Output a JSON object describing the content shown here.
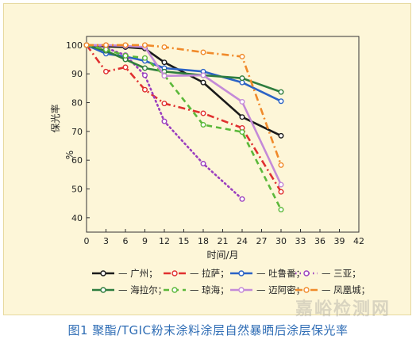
{
  "caption": "图1 聚酯/TGIC粉末涂料涂层自然暴晒后涂层保光率",
  "watermark": "嘉峪检测网",
  "chart_data": {
    "type": "line",
    "title": "",
    "xlabel": "时间/月",
    "ylabel": "保光率",
    "ylabel_unit": "%",
    "xlim": [
      0,
      42
    ],
    "ylim": [
      35,
      103
    ],
    "xticks": [
      0,
      3,
      6,
      9,
      12,
      15,
      18,
      21,
      24,
      27,
      30,
      33,
      36,
      39,
      42
    ],
    "yticks": [
      40,
      50,
      60,
      70,
      80,
      90,
      100
    ],
    "legend_placement": "bottom",
    "series": [
      {
        "name": "广州",
        "color": "#1a1a1a",
        "dash": "solid",
        "x": [
          0,
          3,
          6,
          9,
          12,
          18,
          24,
          30
        ],
        "y": [
          100,
          99.5,
          99.3,
          98.8,
          94,
          87,
          75,
          68.5
        ]
      },
      {
        "name": "拉萨",
        "color": "#e03030",
        "dash": "dashdot",
        "x": [
          0,
          3,
          6,
          9,
          12,
          18,
          24,
          30
        ],
        "y": [
          100,
          90.8,
          92.3,
          84.5,
          79.7,
          76.3,
          71.2,
          49
        ]
      },
      {
        "name": "吐鲁番",
        "color": "#2b63c6",
        "dash": "solid",
        "x": [
          0,
          3,
          6,
          9,
          12,
          18,
          24,
          30
        ],
        "y": [
          100,
          97,
          96,
          94.5,
          92,
          90.8,
          87,
          80.5
        ]
      },
      {
        "name": "三亚",
        "color": "#9b3fbf",
        "dash": "dot",
        "x": [
          0,
          3,
          6,
          9,
          12,
          18,
          24
        ],
        "y": [
          100,
          99,
          96.5,
          89.5,
          73.5,
          58.8,
          46.5
        ]
      },
      {
        "name": "海拉尔",
        "color": "#2e7d3e",
        "dash": "solid",
        "x": [
          0,
          3,
          6,
          9,
          12,
          18,
          24,
          30
        ],
        "y": [
          100,
          98,
          95,
          92,
          90.8,
          89.5,
          88.5,
          83.7
        ]
      },
      {
        "name": "琼海",
        "color": "#5bb83a",
        "dash": "dash",
        "x": [
          0,
          3,
          6,
          9,
          12,
          18,
          24,
          30
        ],
        "y": [
          100,
          98.5,
          96.3,
          95.5,
          89.5,
          72.3,
          69.8,
          42.8
        ]
      },
      {
        "name": "迈阿密",
        "color": "#c48ad8",
        "dash": "solid",
        "x": [
          0,
          3,
          6,
          9,
          12,
          18,
          24,
          30
        ],
        "y": [
          100,
          100,
          99.7,
          99.3,
          89.3,
          89.5,
          80.3,
          51.5
        ]
      },
      {
        "name": "凤凰城",
        "color": "#f08a2a",
        "dash": "dashdot",
        "x": [
          0,
          3,
          6,
          9,
          12,
          18,
          24,
          30
        ],
        "y": [
          100,
          100,
          100,
          100,
          99.3,
          97.5,
          96,
          58.3
        ]
      }
    ]
  }
}
